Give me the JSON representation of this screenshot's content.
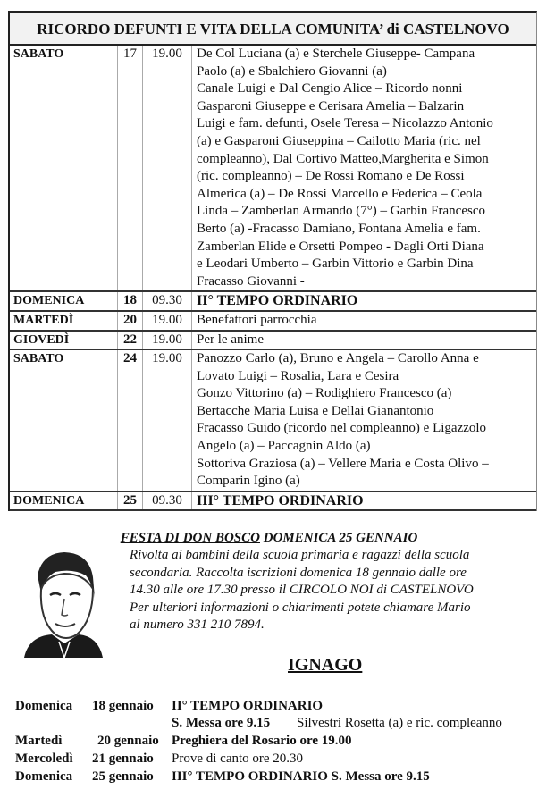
{
  "header": {
    "title": "RICORDO DEFUNTI E VITA DELLA COMUNITA’ di CASTELNOVO"
  },
  "rows": [
    {
      "day": "SABATO",
      "num": "17",
      "time": "19.00",
      "lines": [
        "De Col Luciana (a) e Sterchele Giuseppe- Campana",
        "Paolo (a) e Sbalchiero Giovanni (a)",
        "Canale Luigi e Dal Cengio Alice – Ricordo nonni",
        "Gasparoni Giuseppe e Cerisara Amelia – Balzarin",
        "Luigi e fam. defunti, Osele Teresa – Nicolazzo Antonio",
        "(a) e Gasparoni Giuseppina – Cailotto Maria (ric. nel",
        "compleanno), Dal Cortivo Matteo,Margherita e Simon",
        "(ric. compleanno) – De Rossi Romano e De Rossi",
        "Almerica (a) – De Rossi Marcello e Federica – Ceola",
        "Linda – Zamberlan Armando (7°) – Garbin Francesco",
        "Berto (a) -Fracasso Damiano, Fontana Amelia e fam.",
        "Zamberlan Elide e Orsetti Pompeo  - Dagli Orti Diana",
        "e Leodari Umberto – Garbin Vittorio e Garbin Dina",
        "Fracasso Giovanni -"
      ]
    },
    {
      "day": "DOMENICA",
      "num": "18",
      "time": "09.30",
      "lines": [
        "II° TEMPO ORDINARIO"
      ],
      "bold": true
    },
    {
      "day": "MARTEDÌ",
      "num": "20",
      "time": "19.00",
      "lines": [
        "Benefattori parrocchia"
      ]
    },
    {
      "day": "GIOVEDÌ",
      "num": "22",
      "time": "19.00",
      "lines": [
        "Per le anime"
      ]
    },
    {
      "day": "SABATO",
      "num": "24",
      "time": "19.00",
      "lines": [
        " Panozzo Carlo (a), Bruno e Angela – Carollo Anna e",
        "Lovato Luigi – Rosalia, Lara e Cesira",
        "Gonzo Vittorino (a) – Rodighiero Francesco (a)",
        "Bertacche Maria Luisa e Dellai Gianantonio",
        "Fracasso Guido (ricordo nel compleanno) e Ligazzolo",
        "Angelo (a) – Paccagnin Aldo (a)",
        "Sottoriva Graziosa (a) – Vellere Maria e Costa Olivo –",
        "Comparin Igino (a)"
      ]
    },
    {
      "day": "DOMENICA",
      "num": "25",
      "time": "09.30",
      "lines": [
        "III° TEMPO ORDINARIO"
      ],
      "bold": true
    }
  ],
  "festa": {
    "title_underlined": "FESTA DI DON BOSCO",
    "title_rest": " DOMENICA 25 GENNAIO",
    "lines": [
      "Rivolta ai bambini della scuola primaria e ragazzi della scuola",
      "secondaria. Raccolta iscrizioni domenica 18 gennaio  dalle ore",
      "14.30 alle ore 17.30 presso il CIRCOLO NOI di CASTELNOVO",
      "Per ulteriori informazioni o chiarimenti potete chiamare Mario",
      "al numero 331 210 7894."
    ]
  },
  "ignago": {
    "title": "IGNAGO",
    "items": [
      {
        "day": "Domenica",
        "date": "18 gennaio",
        "text": "II° TEMPO ORDINARIO",
        "bold": true
      },
      {
        "day": "",
        "date": "",
        "text": "S. Messa ore 9.15",
        "extra": "Silvestri Rosetta (a) e ric. compleanno",
        "bold": true
      },
      {
        "day": "Martedì",
        "date": "20 gennaio",
        "text": " Preghiera del Rosario ore 19.00",
        "bold": true
      },
      {
        "day": "Mercoledì",
        "date": "21  gennaio",
        "text": "Prove di canto ore 20.30",
        "bold": false
      },
      {
        "day": "Domenica",
        "date": "25 gennaio",
        "text": "III° TEMPO ORDINARIO  S. Messa ore 9.15",
        "bold": true
      }
    ]
  }
}
